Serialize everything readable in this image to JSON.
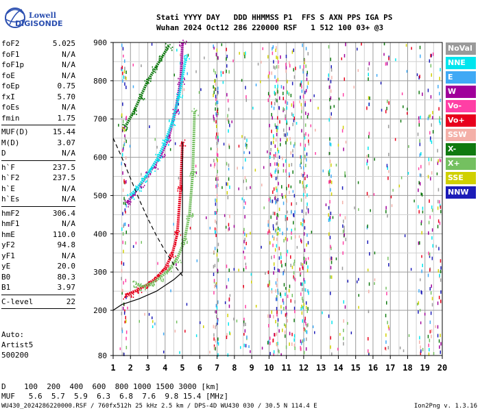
{
  "logo": {
    "line1": "Lowell",
    "line2": "DIGISONDE"
  },
  "header": {
    "line1": "Stati YYYY DAY   DDD HHMMSS P1  FFS S AXN PPS IGA PS",
    "line2": "Wuhan 2024 Oct12 286 220000 RSF   1 512 100 03+ @3"
  },
  "params_group1": [
    {
      "label": "foF2",
      "value": "5.025"
    },
    {
      "label": "foF1",
      "value": "N/A"
    },
    {
      "label": "foF1p",
      "value": "N/A"
    },
    {
      "label": "foE",
      "value": "N/A"
    },
    {
      "label": "foEp",
      "value": "0.75"
    },
    {
      "label": "fxI",
      "value": "5.70"
    },
    {
      "label": "foEs",
      "value": "N/A"
    },
    {
      "label": "fmin",
      "value": "1.75"
    }
  ],
  "params_group2": [
    {
      "label": "MUF(D)",
      "value": "15.44"
    },
    {
      "label": "M(D)",
      "value": "3.07"
    },
    {
      "label": "D",
      "value": "N/A"
    }
  ],
  "params_group3": [
    {
      "label": "h`F",
      "value": "237.5"
    },
    {
      "label": "h`F2",
      "value": "237.5"
    },
    {
      "label": "h`E",
      "value": "N/A"
    },
    {
      "label": "h`Es",
      "value": "N/A"
    }
  ],
  "params_group4": [
    {
      "label": "hmF2",
      "value": "306.4"
    },
    {
      "label": "hmF1",
      "value": "N/A"
    },
    {
      "label": "hmE",
      "value": "110.0"
    },
    {
      "label": "yF2",
      "value": "94.8"
    },
    {
      "label": "yF1",
      "value": "N/A"
    },
    {
      "label": "yE",
      "value": "20.0"
    },
    {
      "label": "B0",
      "value": "80.3"
    },
    {
      "label": "B1",
      "value": "3.97"
    }
  ],
  "params_group5": [
    {
      "label": "C-level",
      "value": "22"
    }
  ],
  "auto": {
    "line1": "Auto:",
    "line2": "Artist5",
    "line3": "500200"
  },
  "legend": [
    {
      "label": "NoVal",
      "color": "#9a9a9a"
    },
    {
      "label": "NNE",
      "color": "#00e5ee"
    },
    {
      "label": "E",
      "color": "#3fa9f5"
    },
    {
      "label": "W",
      "color": "#a0009a"
    },
    {
      "label": "Vo-",
      "color": "#ff3fa5"
    },
    {
      "label": "Vo+",
      "color": "#e8001c"
    },
    {
      "label": "SSW",
      "color": "#f4b0a8"
    },
    {
      "label": "X-",
      "color": "#107a10"
    },
    {
      "label": "X+",
      "color": "#74c060"
    },
    {
      "label": "SSE",
      "color": "#d0d000"
    },
    {
      "label": "NNW",
      "color": "#1c1cb8"
    }
  ],
  "dmuf": {
    "line1": "D    100  200  400  600  800 1000 1500 3000 [km]",
    "line2": "MUF   5.6  5.7  5.9  6.3  6.8  7.6  9.8 15.4 [MHz]"
  },
  "footer": "WU430_2024286220000.RSF / 760fx512h 25 kHz 2.5 km / DPS-4D WU430 030 / 30.5 N 114.4 E",
  "version": "Ion2Png v. 1.3.16",
  "chart_data": {
    "type": "scatter",
    "x_ticks": [
      1,
      2,
      3,
      4,
      5,
      6,
      7,
      8,
      9,
      10,
      11,
      12,
      13,
      14,
      15,
      16,
      17,
      18,
      19,
      20
    ],
    "y_ticks": [
      80,
      200,
      300,
      400,
      500,
      600,
      700,
      800,
      900
    ],
    "xlim": [
      1,
      20
    ],
    "ylim": [
      80,
      900
    ],
    "grid": true,
    "legend_placement": "right",
    "series": [
      {
        "name": "Vo+",
        "color": "#e8001c",
        "x": [
          1.7,
          2.0,
          2.5,
          3.0,
          3.5,
          4.0,
          4.4,
          4.7,
          4.9,
          5.0
        ],
        "y": [
          240,
          245,
          255,
          268,
          285,
          310,
          345,
          400,
          520,
          640
        ]
      },
      {
        "name": "X+",
        "color": "#74c060",
        "x": [
          2.3,
          2.7,
          3.2,
          3.7,
          4.2,
          4.7,
          5.1,
          5.4,
          5.6,
          5.7
        ],
        "y": [
          270,
          262,
          270,
          285,
          305,
          335,
          380,
          450,
          560,
          720
        ]
      },
      {
        "name": "W",
        "color": "#a0009a",
        "x": [
          1.8,
          2.2,
          2.6,
          3.0,
          3.4,
          3.8,
          4.2,
          4.6,
          4.9,
          5.0
        ],
        "y": [
          480,
          505,
          530,
          555,
          580,
          610,
          650,
          720,
          800,
          900
        ]
      },
      {
        "name": "NNE",
        "color": "#00e5ee",
        "x": [
          2.0,
          2.4,
          2.8,
          3.2,
          3.6,
          4.0,
          4.4,
          4.8,
          5.2
        ],
        "y": [
          500,
          520,
          545,
          570,
          600,
          640,
          690,
          760,
          860
        ]
      },
      {
        "name": "X-",
        "color": "#107a10",
        "x": [
          1.7,
          2.2,
          2.6,
          3.0,
          3.4,
          3.8,
          4.2
        ],
        "y": [
          680,
          720,
          760,
          800,
          830,
          860,
          890
        ]
      }
    ],
    "profile": {
      "x": [
        1.0,
        1.5,
        2.5,
        3.5,
        4.5,
        5.0,
        5.0
      ],
      "y": [
        200,
        215,
        230,
        250,
        280,
        300,
        640
      ]
    },
    "muf_curve": {
      "x": [
        1.0,
        1.5,
        2.0,
        2.5,
        3.0,
        3.5,
        4.0,
        4.5,
        5.0
      ],
      "y": [
        650,
        600,
        545,
        490,
        440,
        395,
        355,
        320,
        290
      ]
    }
  }
}
